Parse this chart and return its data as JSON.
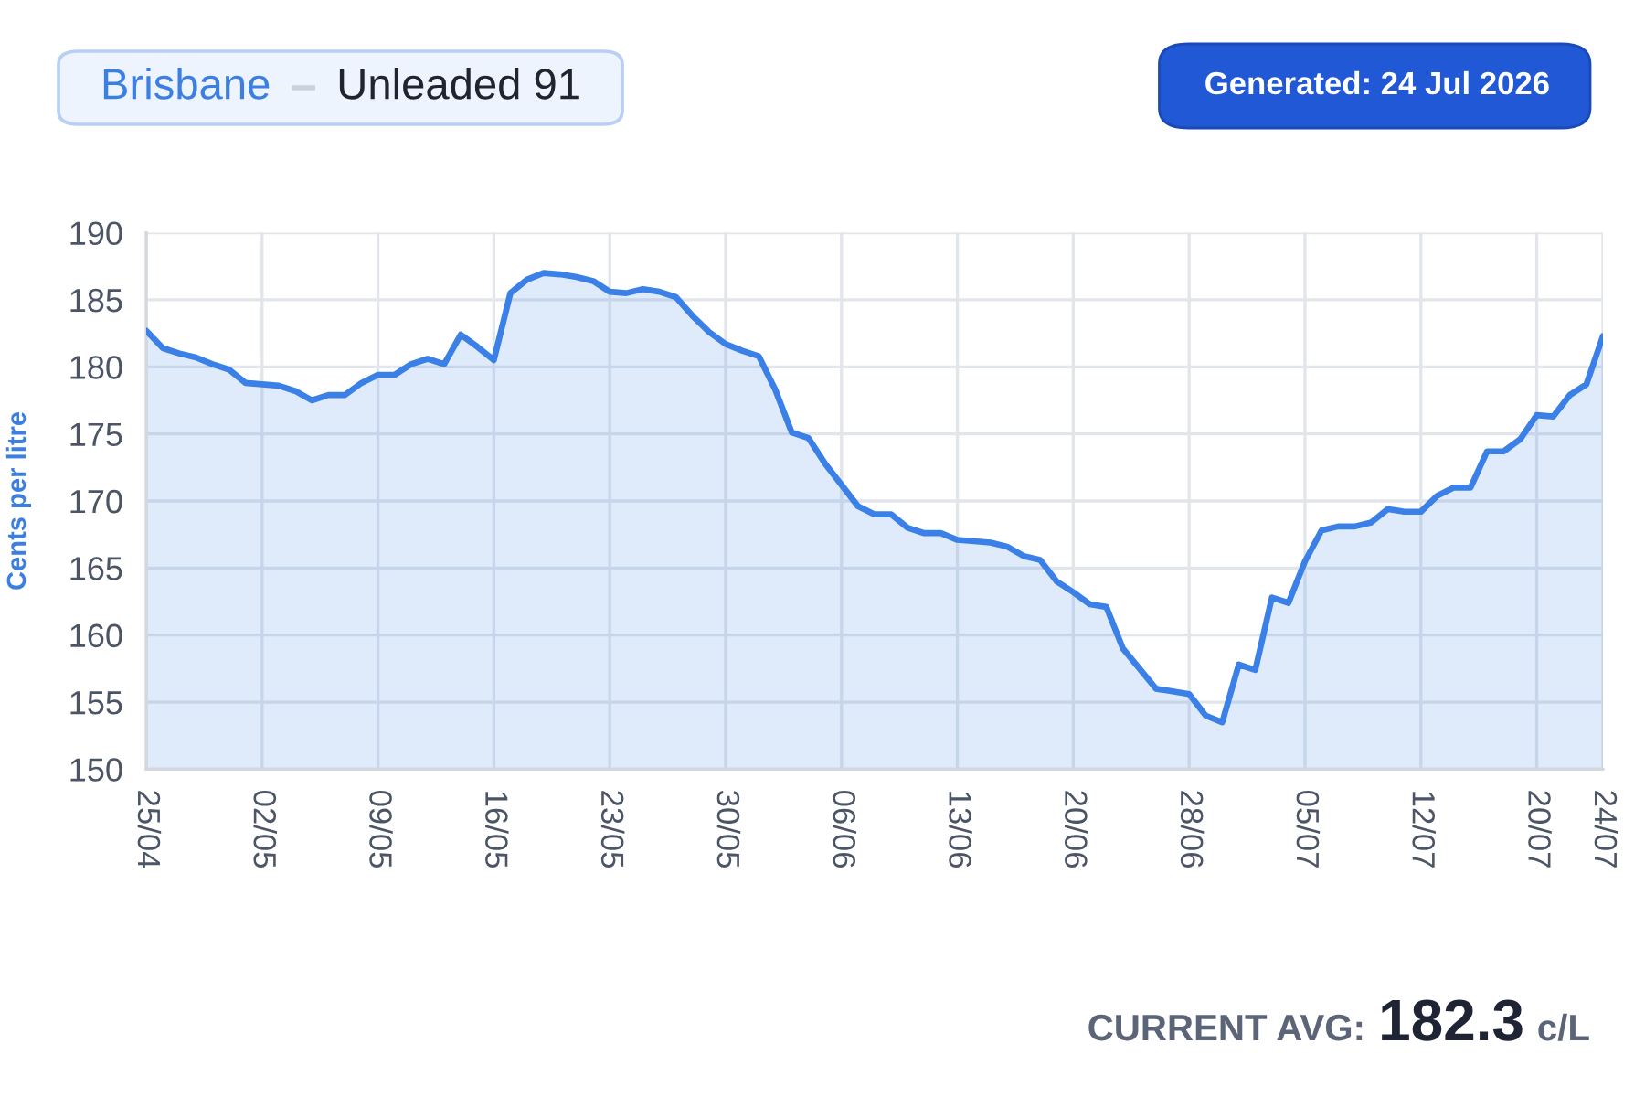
{
  "chart_data": {
    "type": "area",
    "title": "Brisbane",
    "subtitle": "Unleaded 91",
    "ylabel": "Cents per litre",
    "annotations": [
      "Generated: 24 Jul 2026",
      "CURRENT AVG:",
      "182.3",
      "c/L"
    ],
    "categories": [
      "25/04",
      null,
      null,
      null,
      null,
      null,
      null,
      "02/05",
      null,
      null,
      null,
      null,
      null,
      null,
      "09/05",
      null,
      null,
      null,
      null,
      null,
      null,
      "16/05",
      null,
      null,
      null,
      null,
      null,
      null,
      "23/05",
      null,
      null,
      null,
      null,
      null,
      null,
      "30/05",
      null,
      null,
      null,
      null,
      null,
      null,
      "06/06",
      null,
      null,
      null,
      null,
      null,
      null,
      "13/06",
      null,
      null,
      null,
      null,
      null,
      null,
      "20/06",
      null,
      null,
      null,
      null,
      null,
      null,
      "28/06",
      null,
      null,
      null,
      null,
      null,
      null,
      "05/07",
      null,
      null,
      null,
      null,
      null,
      null,
      "12/07",
      null,
      null,
      null,
      null,
      null,
      null,
      "20/07",
      null,
      null,
      null,
      "24/07"
    ],
    "series": [
      {
        "color": "#3a80e6",
        "values": [
          182.7,
          181.4,
          181.0,
          180.7,
          180.2,
          179.8,
          178.8,
          178.7,
          178.6,
          178.2,
          177.5,
          177.9,
          177.9,
          178.8,
          179.4,
          179.4,
          180.2,
          180.6,
          180.2,
          182.4,
          181.5,
          180.5,
          185.5,
          186.5,
          187.0,
          186.9,
          186.7,
          186.4,
          185.6,
          185.5,
          185.8,
          185.6,
          185.2,
          183.8,
          182.6,
          181.7,
          181.2,
          180.8,
          178.3,
          175.1,
          174.7,
          172.8,
          171.2,
          169.6,
          169.0,
          169.0,
          168.0,
          167.6,
          167.6,
          167.1,
          167.0,
          166.9,
          166.6,
          165.9,
          165.6,
          164.0,
          163.2,
          162.3,
          162.1,
          159.0,
          157.5,
          156.0,
          155.8,
          155.6,
          154.0,
          153.5,
          157.8,
          157.4,
          162.8,
          162.4,
          165.5,
          167.8,
          168.1,
          168.1,
          168.4,
          169.4,
          169.2,
          169.2,
          170.4,
          171.0,
          171.0,
          173.7,
          173.7,
          174.6,
          176.4,
          176.3,
          177.9,
          178.7,
          182.3
        ]
      }
    ],
    "ylim": [
      150,
      190
    ],
    "yticks": [
      150,
      155,
      160,
      165,
      170,
      175,
      180,
      185,
      190
    ],
    "grid": true
  }
}
